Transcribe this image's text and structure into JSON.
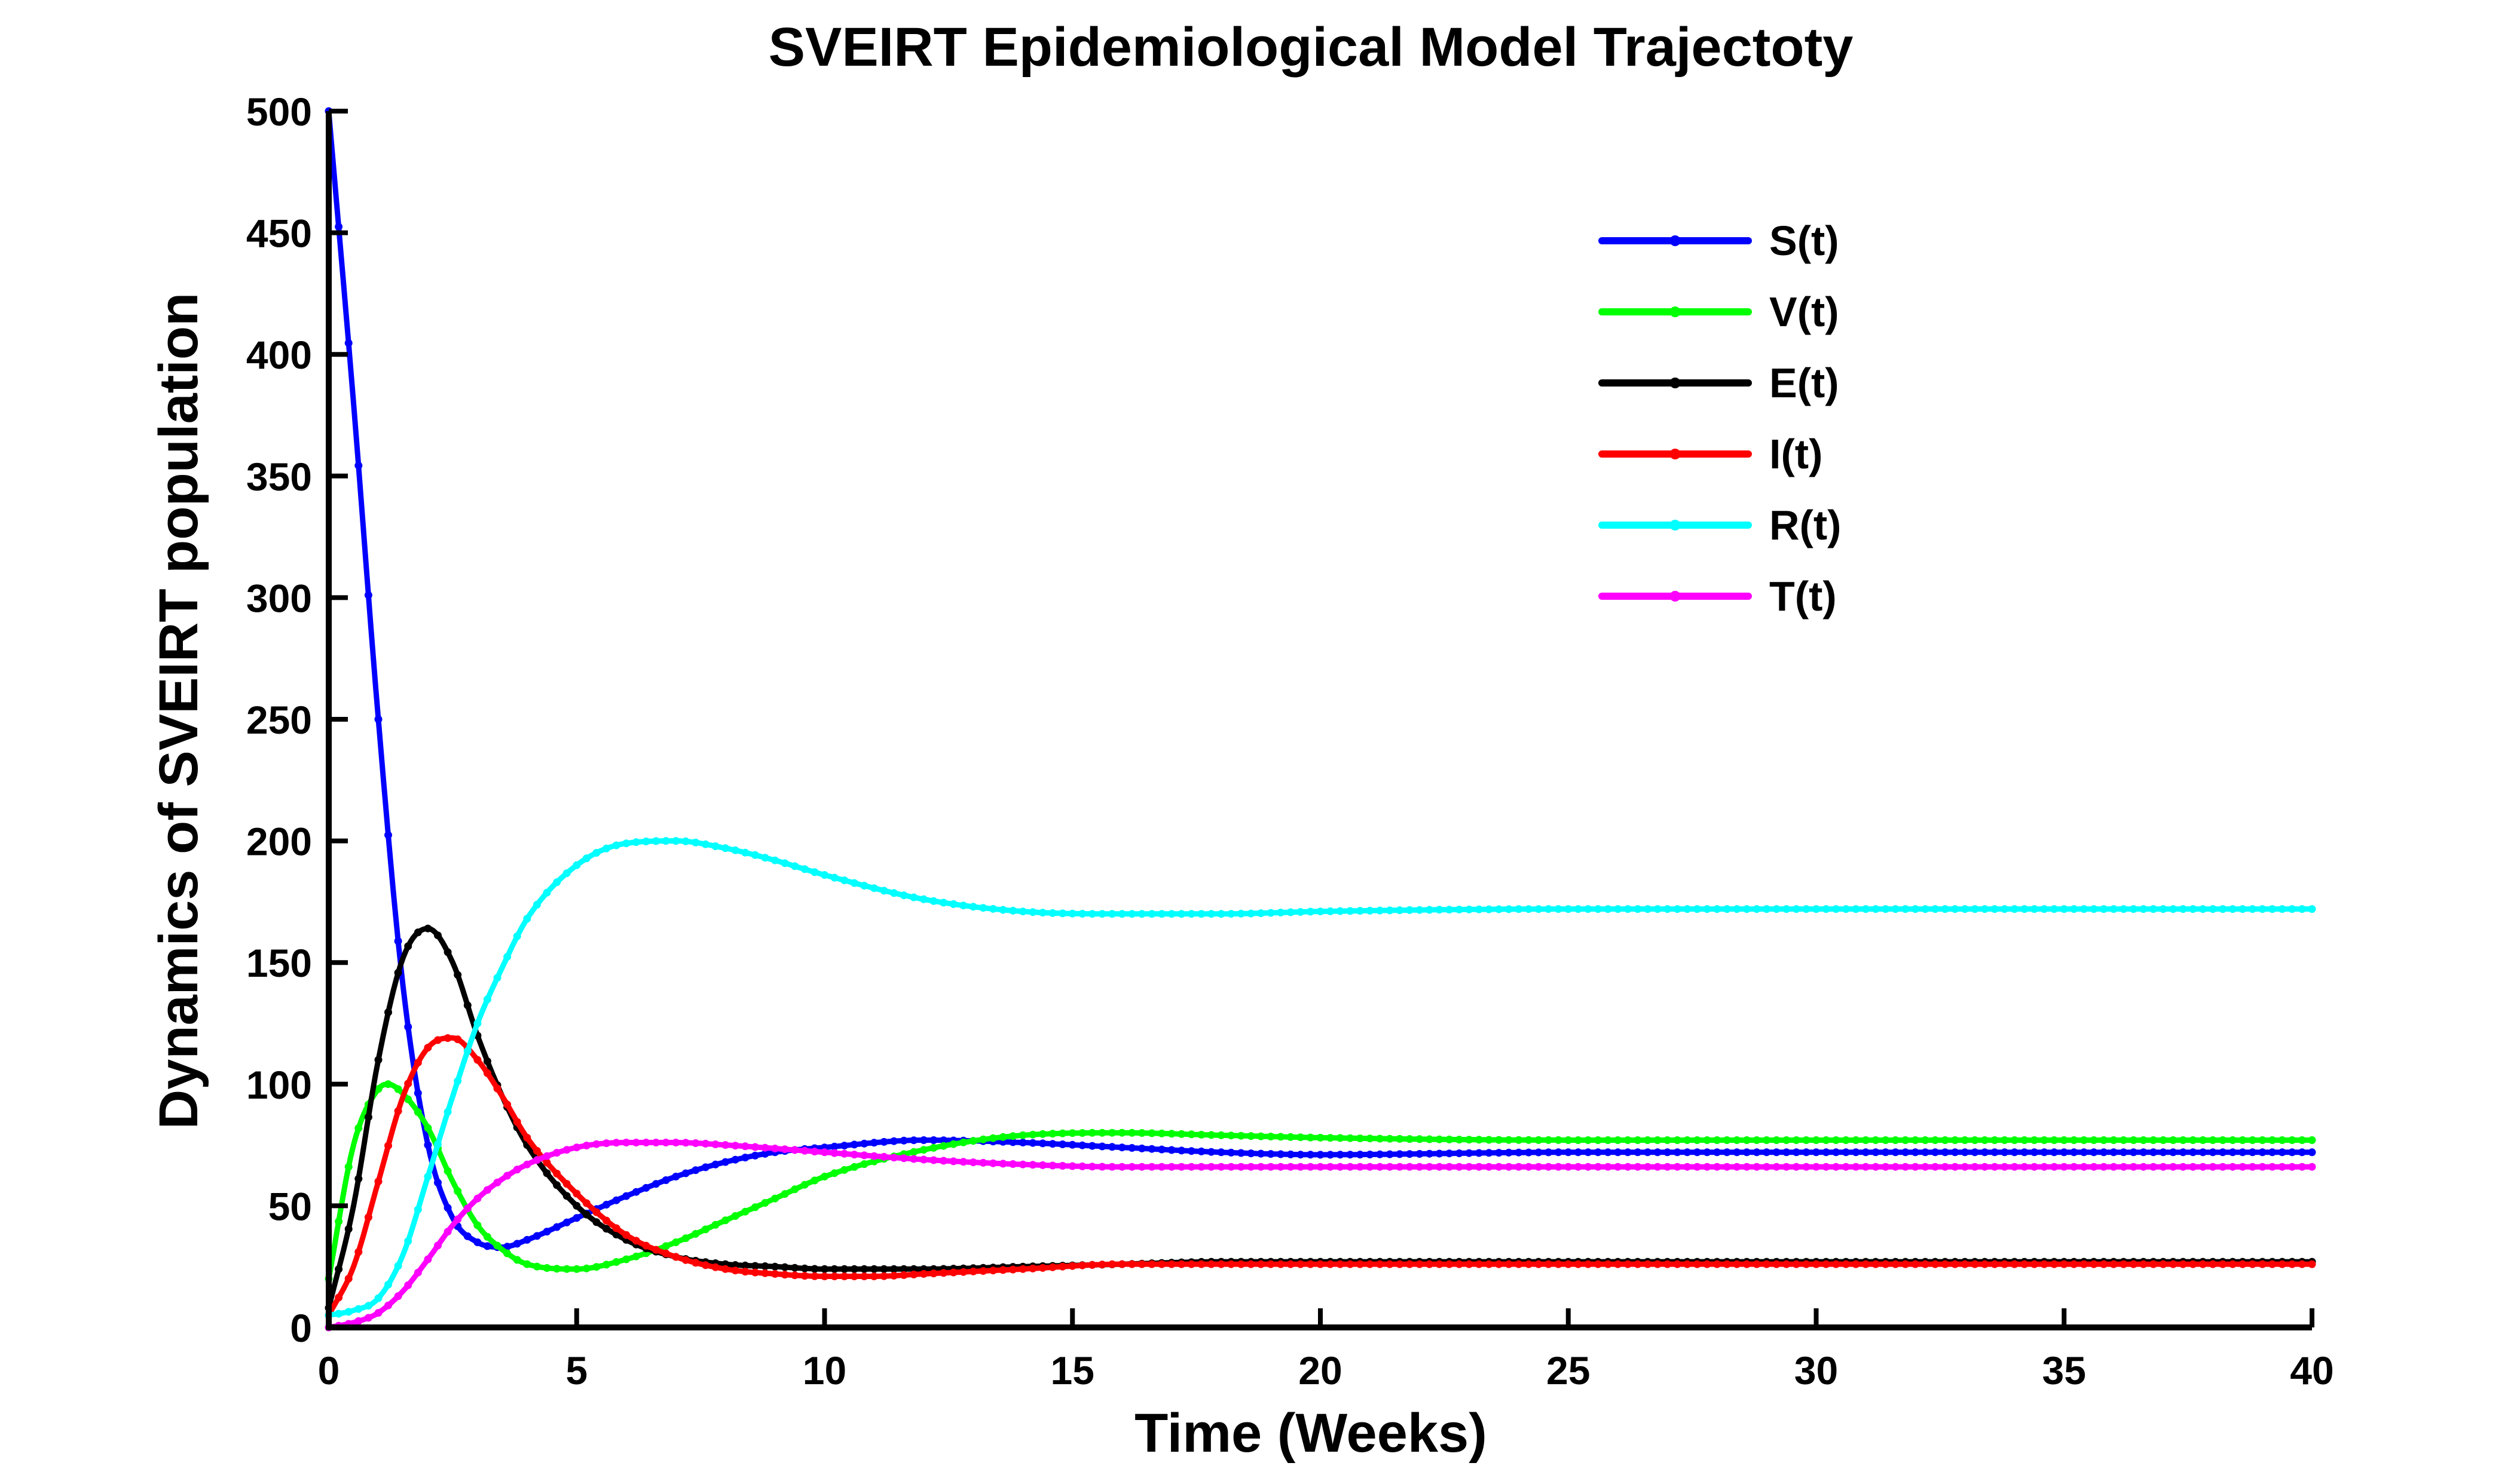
{
  "chart_data": {
    "type": "line",
    "title": "SVEIRT Epidemiological Model Trajectoty",
    "xlabel": "Time (Weeks)",
    "ylabel": "Dynamics of SVEIRT population",
    "xlim": [
      0,
      40
    ],
    "ylim": [
      0,
      500
    ],
    "xticks": [
      0,
      5,
      10,
      15,
      20,
      25,
      30,
      35,
      40
    ],
    "yticks": [
      0,
      50,
      100,
      150,
      200,
      250,
      300,
      350,
      400,
      450,
      500
    ],
    "grid": false,
    "legend_position": "top-right",
    "series": [
      {
        "name": "S(t)",
        "color": "#0000ff",
        "x": [
          0,
          0.5,
          1,
          1.5,
          2,
          2.5,
          3,
          3.5,
          4,
          5,
          6,
          7,
          8,
          9,
          10,
          12,
          14,
          16,
          18,
          20,
          25,
          30,
          35,
          40
        ],
        "y": [
          500,
          380,
          250,
          140,
          75,
          45,
          35,
          33,
          36,
          45,
          54,
          62,
          68,
          72,
          74,
          77,
          76,
          74,
          72,
          71,
          72,
          72,
          72,
          72
        ]
      },
      {
        "name": "V(t)",
        "color": "#00ff00",
        "x": [
          0,
          0.5,
          1,
          1.2,
          1.5,
          2,
          2.5,
          3,
          3.5,
          4,
          5,
          6,
          7,
          8,
          9,
          10,
          12,
          14,
          16,
          18,
          20,
          25,
          30,
          35,
          40
        ],
        "y": [
          20,
          75,
          98,
          100,
          96,
          82,
          60,
          42,
          32,
          26,
          24,
          28,
          35,
          44,
          53,
          62,
          73,
          79,
          80,
          79,
          78,
          77,
          77,
          77,
          77
        ]
      },
      {
        "name": "E(t)",
        "color": "#000000",
        "x": [
          0,
          0.5,
          1,
          1.5,
          2,
          2.5,
          3,
          3.5,
          4,
          5,
          6,
          7,
          8,
          9,
          10,
          11,
          12,
          14,
          16,
          18,
          20,
          25,
          30,
          35,
          40
        ],
        "y": [
          8,
          50,
          110,
          152,
          164,
          150,
          120,
          95,
          75,
          50,
          36,
          29,
          26,
          25,
          24,
          24,
          24,
          25,
          26,
          27,
          27,
          27,
          27,
          27,
          27
        ]
      },
      {
        "name": "I(t)",
        "color": "#ff0000",
        "x": [
          0,
          0.5,
          1,
          1.5,
          2,
          2.5,
          3,
          3.5,
          4,
          5,
          6,
          7,
          8,
          9,
          10,
          11,
          12,
          14,
          16,
          18,
          20,
          25,
          30,
          35,
          40
        ],
        "y": [
          5,
          25,
          60,
          95,
          115,
          119,
          110,
          95,
          78,
          55,
          38,
          29,
          24,
          22,
          21,
          21,
          22,
          24,
          26,
          26,
          26,
          26,
          26,
          26,
          26
        ]
      },
      {
        "name": "R(t)",
        "color": "#00ffff",
        "x": [
          0,
          0.5,
          1,
          1.5,
          2,
          2.5,
          3,
          3.5,
          4,
          5,
          6,
          7,
          8,
          9,
          10,
          12,
          14,
          16,
          18,
          20,
          25,
          30,
          35,
          40
        ],
        "y": [
          5,
          7,
          12,
          30,
          62,
          95,
          125,
          148,
          168,
          190,
          199,
          200,
          197,
          192,
          186,
          176,
          171,
          170,
          170,
          171,
          172,
          172,
          172,
          172
        ]
      },
      {
        "name": "T(t)",
        "color": "#ff00ff",
        "x": [
          0,
          0.5,
          1,
          1.5,
          2,
          2.5,
          3,
          3.5,
          4,
          5,
          6,
          7,
          8,
          10,
          12,
          14,
          16,
          18,
          20,
          25,
          30,
          35,
          40
        ],
        "y": [
          0,
          2,
          6,
          15,
          28,
          42,
          53,
          61,
          67,
          74,
          76,
          76,
          75,
          72,
          69,
          67,
          66,
          66,
          66,
          66,
          66,
          66,
          66
        ]
      }
    ]
  }
}
